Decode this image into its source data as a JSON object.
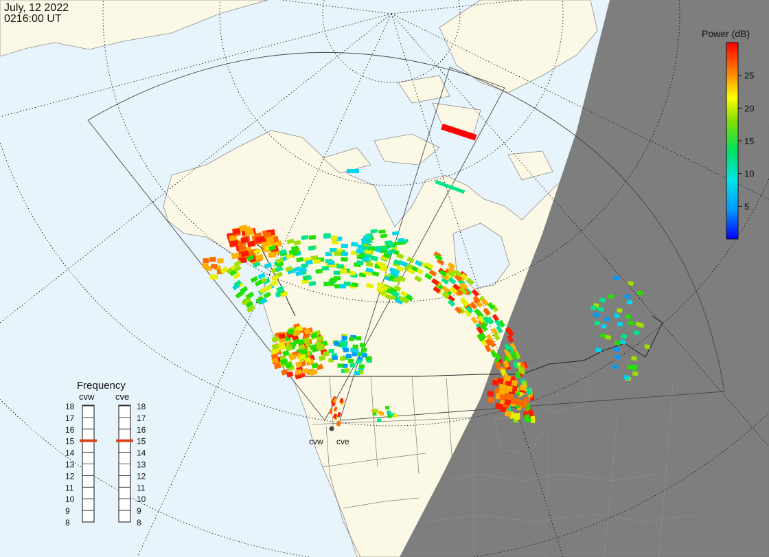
{
  "header": {
    "date": "July, 12 2022",
    "time": "0216:00 UT"
  },
  "colorbar": {
    "title": "Power (dB)",
    "ticks": [
      "25",
      "20",
      "15",
      "10",
      "5"
    ],
    "tick_values": [
      25,
      20,
      15,
      10,
      5
    ],
    "min": 0,
    "max": 30
  },
  "frequency": {
    "title": "Frequency",
    "radars": [
      {
        "code": "cvw",
        "value": 15
      },
      {
        "code": "cve",
        "value": 15
      }
    ],
    "scale": [
      "18",
      "17",
      "16",
      "15",
      "14",
      "13",
      "12",
      "11",
      "10",
      "9",
      "8"
    ],
    "scale_values": [
      18,
      17,
      16,
      15,
      14,
      13,
      12,
      11,
      10,
      9,
      8
    ]
  },
  "radar_sites": [
    {
      "label": "cvw"
    },
    {
      "label": "cve"
    }
  ],
  "colors": {
    "ocean": "#e8f4fb",
    "land": "#fbf8e6",
    "night": "#7a7a7a",
    "night_land": "#747474",
    "frequency_marker": "#d9421a"
  }
}
